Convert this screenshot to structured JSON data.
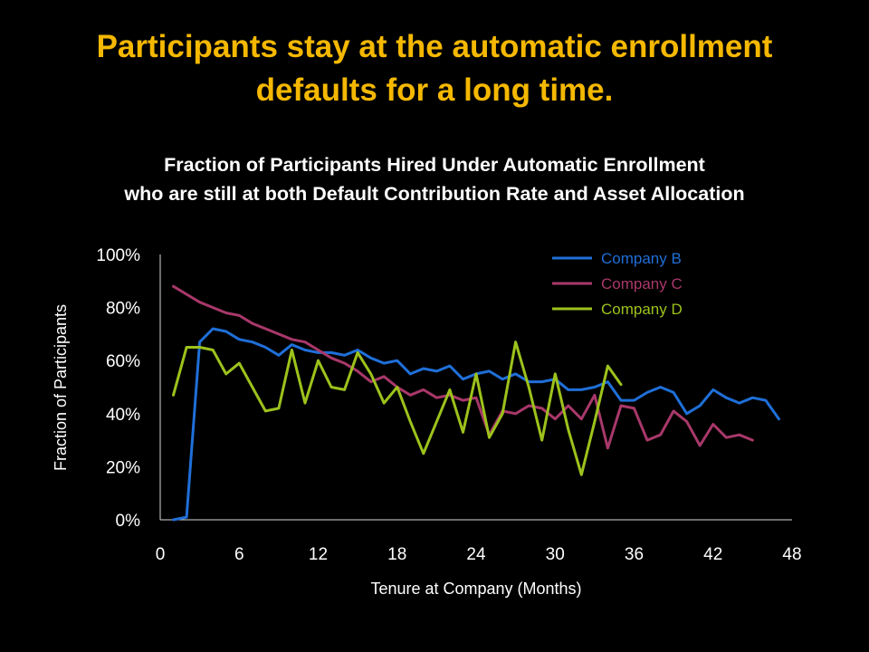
{
  "slide": {
    "title_line1": "Participants stay at the automatic enrollment",
    "title_line2": "defaults for a long time."
  },
  "chart_data": {
    "type": "line",
    "title": "Fraction of Participants Hired Under Automatic Enrollment",
    "subtitle": "who are still at both Default Contribution Rate and Asset Allocation",
    "xlabel": "Tenure at Company (Months)",
    "ylabel": "Fraction of Participants",
    "xlim": [
      0,
      48
    ],
    "ylim": [
      0,
      100
    ],
    "x_ticks": [
      0,
      6,
      12,
      18,
      24,
      30,
      36,
      42,
      48
    ],
    "y_ticks": [
      0,
      20,
      40,
      60,
      80,
      100
    ],
    "y_tick_format": "percent",
    "grid": false,
    "legend_position": "top-right",
    "series": [
      {
        "name": "Company B",
        "color": "#1f6fd8",
        "x": [
          1,
          2,
          3,
          4,
          5,
          6,
          7,
          8,
          9,
          10,
          11,
          12,
          13,
          14,
          15,
          16,
          17,
          18,
          19,
          20,
          21,
          22,
          23,
          24,
          25,
          26,
          27,
          28,
          29,
          30,
          31,
          32,
          33,
          34,
          35,
          36,
          37,
          38,
          39,
          40,
          41,
          42,
          43,
          44,
          45,
          46,
          47
        ],
        "values": [
          0,
          1,
          67,
          72,
          71,
          68,
          67,
          65,
          62,
          66,
          64,
          63,
          63,
          62,
          64,
          61,
          59,
          60,
          55,
          57,
          56,
          58,
          53,
          55,
          56,
          53,
          55,
          52,
          52,
          53,
          49,
          49,
          50,
          52,
          45,
          45,
          48,
          50,
          48,
          40,
          43,
          49,
          46,
          44,
          46,
          45,
          38
        ]
      },
      {
        "name": "Company C",
        "color": "#a8386a",
        "x": [
          1,
          2,
          3,
          4,
          5,
          6,
          7,
          8,
          9,
          10,
          11,
          12,
          13,
          14,
          15,
          16,
          17,
          18,
          19,
          20,
          21,
          22,
          23,
          24,
          25,
          26,
          27,
          28,
          29,
          30,
          31,
          32,
          33,
          34,
          35,
          36,
          37,
          38,
          39,
          40,
          41,
          42,
          43,
          44,
          45
        ],
        "values": [
          88,
          85,
          82,
          80,
          78,
          77,
          74,
          72,
          70,
          68,
          67,
          64,
          61,
          59,
          56,
          52,
          54,
          50,
          47,
          49,
          46,
          47,
          45,
          46,
          32,
          41,
          40,
          43,
          42,
          38,
          43,
          38,
          47,
          27,
          43,
          42,
          30,
          32,
          41,
          37,
          28,
          36,
          31,
          32,
          30
        ]
      },
      {
        "name": "Company D",
        "color": "#9dc21c",
        "x": [
          1,
          2,
          3,
          4,
          5,
          6,
          7,
          8,
          9,
          10,
          11,
          12,
          13,
          14,
          15,
          16,
          17,
          18,
          19,
          20,
          21,
          22,
          23,
          24,
          25,
          26,
          27,
          28,
          29,
          30,
          31,
          32,
          33,
          34,
          35
        ],
        "values": [
          47,
          65,
          65,
          64,
          55,
          59,
          50,
          41,
          42,
          64,
          44,
          60,
          50,
          49,
          63,
          55,
          44,
          50,
          37,
          25,
          37,
          49,
          33,
          55,
          31,
          40,
          67,
          50,
          30,
          55,
          34,
          17,
          37,
          58,
          51
        ]
      }
    ]
  }
}
